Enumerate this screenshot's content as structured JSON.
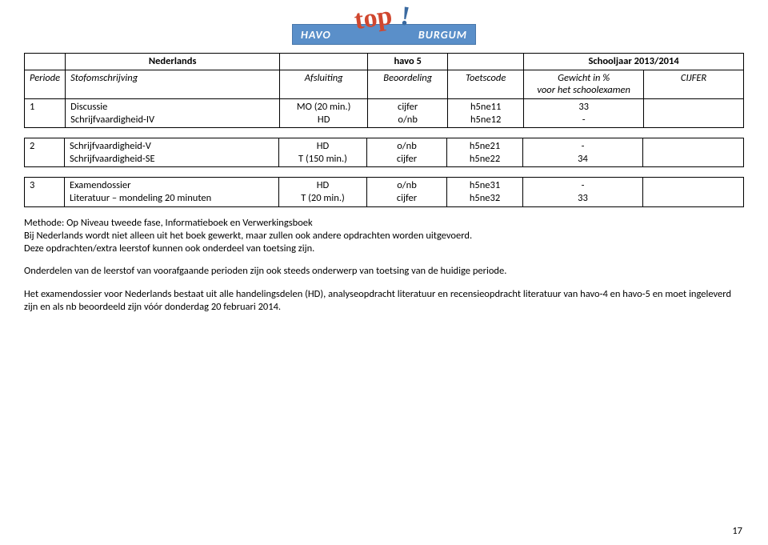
{
  "logo": {
    "left_text": "HAVO",
    "right_text": "BURGUM",
    "top_text": "top",
    "excl": "!"
  },
  "header": {
    "subject": "Nederlands",
    "level": "havo 5",
    "year": "Schooljaar 2013/2014",
    "cols": {
      "periode": "Periode",
      "stof": "Stofomschrijving",
      "afsluiting": "Afsluiting",
      "beoordeling": "Beoordeling",
      "toetscode": "Toetscode",
      "gewicht_line1": "Gewicht in %",
      "gewicht_line2": "voor het schoolexamen",
      "cijfer": "CIJFER"
    }
  },
  "rows": {
    "r1": {
      "periode": "1",
      "stof1": "Discussie",
      "stof2": "Schrijfvaardigheid-IV",
      "afs1": "MO (20 min.)",
      "afs2": "HD",
      "beo1": "cijfer",
      "beo2": "o/nb",
      "code1": "h5ne11",
      "code2": "h5ne12",
      "gew1": "33",
      "gew2": "-"
    },
    "r2": {
      "periode": "2",
      "stof1": "Schrijfvaardigheid-V",
      "stof2": "Schrijfvaardigheid-SE",
      "afs1": "HD",
      "afs2": "T (150 min.)",
      "beo1": "o/nb",
      "beo2": "cijfer",
      "code1": "h5ne21",
      "code2": "h5ne22",
      "gew1": "-",
      "gew2": "34"
    },
    "r3": {
      "periode": "3",
      "stof1": "Examendossier",
      "stof2": "Literatuur – mondeling 20 minuten",
      "afs1": "HD",
      "afs2": "T (20 min.)",
      "beo1": "o/nb",
      "beo2": "cijfer",
      "code1": "h5ne31",
      "code2": "h5ne32",
      "gew1": "-",
      "gew2": "33"
    }
  },
  "body": {
    "p1a": "Methode: Op Niveau tweede fase, Informatieboek en Verwerkingsboek",
    "p1b": "Bij Nederlands wordt niet alleen uit het boek gewerkt, maar zullen ook andere opdrachten worden uitgevoerd.",
    "p1c": "Deze opdrachten/extra leerstof kunnen ook onderdeel van toetsing zijn.",
    "p2": "Onderdelen van de leerstof van voorafgaande perioden zijn ook steeds onderwerp van toetsing van de huidige periode.",
    "p3": "Het examendossier voor Nederlands bestaat uit alle handelingsdelen (HD), analyseopdracht literatuur en recensieopdracht literatuur van havo-4 en havo-5 en moet ingeleverd zijn en als nb beoordeeld zijn vóór donderdag 20 februari 2014."
  },
  "page_number": "17"
}
